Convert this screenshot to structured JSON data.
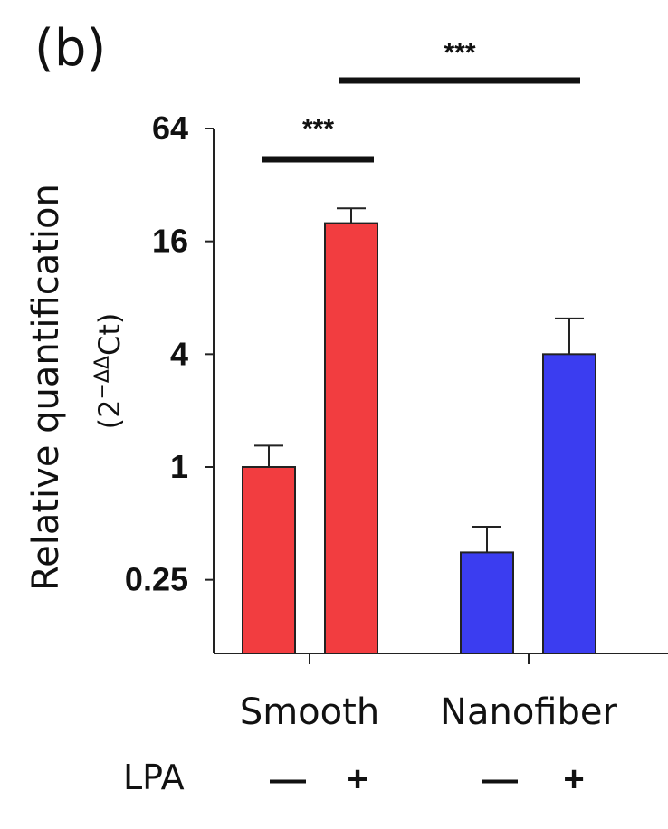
{
  "panel_label": "(b)",
  "chart_data": {
    "type": "bar",
    "yscale": "log2",
    "ylim": [
      0.0625,
      64
    ],
    "yticks": [
      0.25,
      1,
      4,
      16,
      64
    ],
    "ytick_labels": [
      "0.25",
      "1",
      "4",
      "16",
      "64"
    ],
    "ylabel": "Relative quantification",
    "ylabel_sub": "(2^-ΔΔCt)",
    "ylabel_sub_parts": {
      "base": "(2",
      "exp": "−ΔΔ",
      "rest": "Ct)"
    },
    "groups": [
      "Smooth",
      "Nanofiber"
    ],
    "condition_label": "LPA",
    "bars": [
      {
        "group": "Smooth",
        "lpa": "—",
        "value": 1.0,
        "error": 1.3,
        "color": "#f23d40"
      },
      {
        "group": "Smooth",
        "lpa": "+",
        "value": 20.0,
        "error": 24.0,
        "color": "#f23d40"
      },
      {
        "group": "Nanofiber",
        "lpa": "—",
        "value": 0.35,
        "error": 0.48,
        "color": "#3b3df0"
      },
      {
        "group": "Nanofiber",
        "lpa": "+",
        "value": 4.0,
        "error": 6.2,
        "color": "#3b3df0"
      }
    ],
    "significance": [
      {
        "label": "***",
        "from_bar": 0,
        "to_bar": 1
      },
      {
        "label": "***",
        "from_bar": 1,
        "to_bar": 3
      }
    ]
  }
}
